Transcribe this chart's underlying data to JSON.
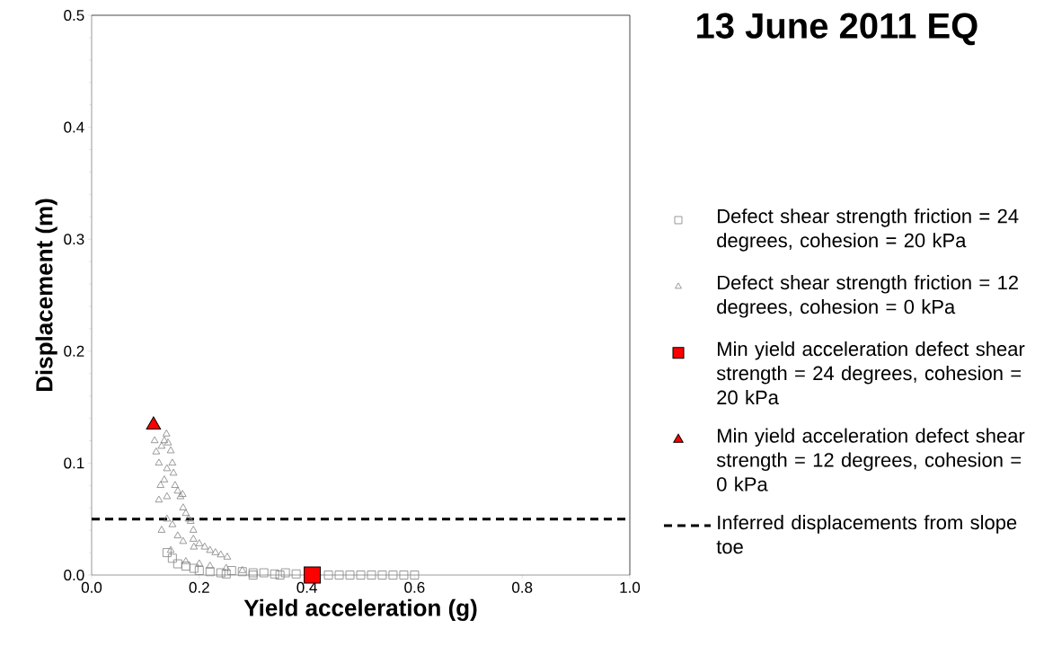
{
  "chart_data": {
    "type": "scatter",
    "title": "13 June 2011 EQ",
    "xlabel": "Yield acceleration (g)",
    "ylabel": "Displacement (m)",
    "xlim": [
      0,
      1
    ],
    "ylim": [
      0,
      0.5
    ],
    "xticks": [
      {
        "value": 0,
        "label": "0.0"
      },
      {
        "value": 0.2,
        "label": "0.2"
      },
      {
        "value": 0.4,
        "label": "0.4"
      },
      {
        "value": 0.6,
        "label": "0.6"
      },
      {
        "value": 0.8,
        "label": "0.8"
      },
      {
        "value": 1,
        "label": "1.0"
      }
    ],
    "yticks": [
      {
        "value": 0,
        "label": "0.0"
      },
      {
        "value": 0.1,
        "label": "0.1"
      },
      {
        "value": 0.2,
        "label": "0.2"
      },
      {
        "value": 0.3,
        "label": "0.3"
      },
      {
        "value": 0.4,
        "label": "0.4"
      },
      {
        "value": 0.5,
        "label": "0.5"
      }
    ],
    "grid": false,
    "legend": "right",
    "series": [
      {
        "name": "Defect shear strength friction = 24 degrees, cohesion = 20 kPa",
        "color": "#808080",
        "marker": "square",
        "x": [
          0.14,
          0.15,
          0.16,
          0.175,
          0.19,
          0.2,
          0.22,
          0.24,
          0.25,
          0.26,
          0.28,
          0.3,
          0.3,
          0.32,
          0.34,
          0.35,
          0.36,
          0.38,
          0.44,
          0.46,
          0.48,
          0.5,
          0.52,
          0.54,
          0.56,
          0.58,
          0.6
        ],
        "values": [
          0.02,
          0.015,
          0.01,
          0.008,
          0.006,
          0.004,
          0.003,
          0.002,
          0.001,
          0.004,
          0.003,
          0.002,
          0,
          0.002,
          0.001,
          0,
          0.002,
          0.001,
          0,
          0,
          0,
          0,
          0,
          0,
          0,
          0,
          0
        ]
      },
      {
        "name": "Defect shear strength friction = 12 degrees, cohesion = 0 kPa",
        "color": "#808080",
        "marker": "triangle",
        "x": [
          0.117,
          0.12,
          0.125,
          0.13,
          0.135,
          0.139,
          0.142,
          0.147,
          0.15,
          0.152,
          0.14,
          0.135,
          0.128,
          0.125,
          0.14,
          0.155,
          0.16,
          0.165,
          0.169,
          0.17,
          0.175,
          0.18,
          0.184,
          0.189,
          0.189,
          0.13,
          0.14,
          0.15,
          0.16,
          0.147,
          0.17,
          0.19,
          0.2,
          0.21,
          0.22,
          0.23,
          0.24,
          0.252,
          0.175,
          0.2,
          0.22,
          0.25,
          0.28
        ],
        "values": [
          0.12,
          0.11,
          0.1,
          0.115,
          0.12,
          0.126,
          0.118,
          0.111,
          0.1,
          0.091,
          0.095,
          0.085,
          0.08,
          0.067,
          0.07,
          0.08,
          0.075,
          0.07,
          0.072,
          0.06,
          0.055,
          0.05,
          0.048,
          0.04,
          0.032,
          0.04,
          0.05,
          0.045,
          0.035,
          0.022,
          0.03,
          0.025,
          0.028,
          0.025,
          0.022,
          0.02,
          0.018,
          0.016,
          0.012,
          0.01,
          0.008,
          0.006,
          0.004
        ]
      },
      {
        "name": "Min yield acceleration defect shear strength = 24 degrees, cohesion = 20 kPa",
        "color": "#ff0000",
        "marker": "square",
        "x": [
          0.41
        ],
        "values": [
          0
        ]
      },
      {
        "name": "Min yield acceleration defect shear strength = 12 degrees, cohesion = 0 kPa",
        "color": "#ff0000",
        "marker": "triangle",
        "x": [
          0.115
        ],
        "values": [
          0.134
        ]
      },
      {
        "name": "Inferred displacements from slope toe",
        "type": "line",
        "color": "#000000",
        "marker": "none",
        "line_style": "dashed",
        "x": [
          0,
          1
        ],
        "values": [
          0.05,
          0.05
        ]
      }
    ]
  }
}
